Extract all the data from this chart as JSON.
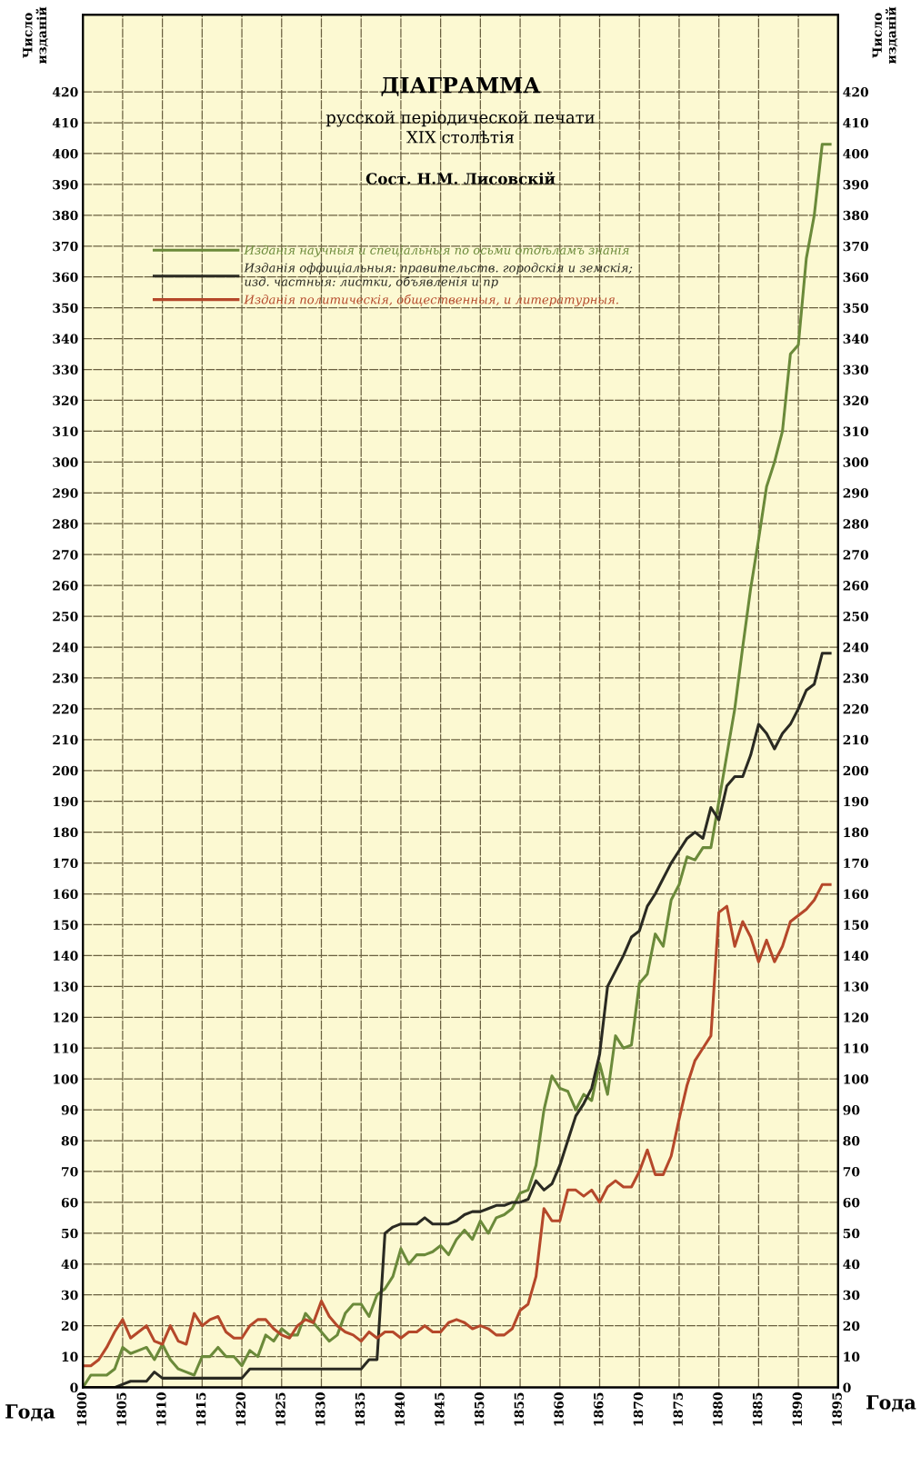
{
  "chart_data": {
    "type": "line",
    "title": "ДІАГРАММА",
    "subtitle": "русской періодической печати\nXIX столѣтія",
    "xlabel": "Года",
    "ylabel": "Число\nизданій",
    "y2label": "Число\nизданій",
    "annotations": [
      "Сост. Н.М. Лисовскій",
      "Года"
    ],
    "x": [
      1800,
      1801,
      1802,
      1803,
      1804,
      1805,
      1806,
      1807,
      1808,
      1809,
      1810,
      1811,
      1812,
      1813,
      1814,
      1815,
      1816,
      1817,
      1818,
      1819,
      1820,
      1821,
      1822,
      1823,
      1824,
      1825,
      1826,
      1827,
      1828,
      1829,
      1830,
      1831,
      1832,
      1833,
      1834,
      1835,
      1836,
      1837,
      1838,
      1839,
      1840,
      1841,
      1842,
      1843,
      1844,
      1845,
      1846,
      1847,
      1848,
      1849,
      1850,
      1851,
      1852,
      1853,
      1854,
      1855,
      1856,
      1857,
      1858,
      1859,
      1860,
      1861,
      1862,
      1863,
      1864,
      1865,
      1866,
      1867,
      1868,
      1869,
      1870,
      1871,
      1872,
      1873,
      1874,
      1875,
      1876,
      1877,
      1878,
      1879,
      1880,
      1881,
      1882,
      1883,
      1884,
      1885,
      1886,
      1887,
      1888,
      1889,
      1890,
      1891,
      1892,
      1893,
      1894
    ],
    "series": [
      {
        "name": "Изданія научныя и спеціальныя по осьми отдѣламъ знанія",
        "color": "#6b8a3a",
        "values": [
          0,
          4,
          4,
          4,
          6,
          13,
          11,
          12,
          13,
          9,
          14,
          9,
          6,
          5,
          4,
          10,
          10,
          13,
          10,
          10,
          7,
          12,
          10,
          17,
          15,
          19,
          17,
          17,
          24,
          21,
          18,
          15,
          17,
          24,
          27,
          27,
          23,
          30,
          32,
          36,
          45,
          40,
          43,
          43,
          44,
          46,
          43,
          48,
          51,
          48,
          54,
          50,
          55,
          56,
          58,
          63,
          64,
          72,
          90,
          101,
          97,
          96,
          90,
          95,
          93,
          105,
          95,
          114,
          110,
          111,
          131,
          134,
          147,
          143,
          158,
          163,
          172,
          171,
          175,
          175,
          190,
          205,
          220,
          240,
          259,
          275,
          292,
          300,
          310,
          335,
          338,
          366,
          380,
          403,
          403
        ]
      },
      {
        "name": "Изданія оффиціальныя: правительств. городскія и земскія;\nизд. частныя: листки, объявленія и пр",
        "color": "#2a2a22",
        "values": [
          0,
          0,
          0,
          0,
          0,
          1,
          2,
          2,
          2,
          5,
          3,
          3,
          3,
          3,
          3,
          3,
          3,
          3,
          3,
          3,
          3,
          6,
          6,
          6,
          6,
          6,
          6,
          6,
          6,
          6,
          6,
          6,
          6,
          6,
          6,
          6,
          9,
          9,
          50,
          52,
          53,
          53,
          53,
          55,
          53,
          53,
          53,
          54,
          56,
          57,
          57,
          58,
          59,
          59,
          60,
          60,
          61,
          67,
          64,
          66,
          72,
          80,
          88,
          92,
          97,
          108,
          130,
          135,
          140,
          146,
          148,
          156,
          160,
          165,
          170,
          174,
          178,
          180,
          178,
          188,
          184,
          195,
          198,
          198,
          205,
          215,
          212,
          207,
          212,
          215,
          220,
          226,
          228,
          238,
          238
        ]
      },
      {
        "name": "Изданія политическія, общественныя, и литературныя.",
        "color": "#b5482a",
        "values": [
          7,
          7,
          9,
          13,
          18,
          22,
          16,
          18,
          20,
          15,
          14,
          20,
          15,
          14,
          24,
          20,
          22,
          23,
          18,
          16,
          16,
          20,
          22,
          22,
          19,
          17,
          16,
          20,
          22,
          21,
          28,
          23,
          20,
          18,
          17,
          15,
          18,
          16,
          18,
          18,
          16,
          18,
          18,
          20,
          18,
          18,
          21,
          22,
          21,
          19,
          20,
          19,
          17,
          17,
          19,
          25,
          27,
          36,
          58,
          54,
          54,
          64,
          64,
          62,
          64,
          60,
          65,
          67,
          65,
          65,
          70,
          77,
          69,
          69,
          75,
          87,
          98,
          106,
          110,
          114,
          154,
          156,
          143,
          151,
          146,
          138,
          145,
          138,
          143,
          151,
          153,
          155,
          158,
          163,
          163
        ]
      }
    ],
    "xlim": [
      1800,
      1895
    ],
    "xticks": [
      1800,
      1805,
      1810,
      1815,
      1820,
      1825,
      1830,
      1835,
      1840,
      1845,
      1850,
      1855,
      1860,
      1865,
      1870,
      1875,
      1880,
      1885,
      1890,
      1895
    ],
    "ylim": [
      0,
      445
    ],
    "yticks": [
      0,
      10,
      20,
      30,
      40,
      50,
      60,
      70,
      80,
      90,
      100,
      110,
      120,
      130,
      140,
      150,
      160,
      170,
      180,
      190,
      200,
      210,
      220,
      230,
      240,
      250,
      260,
      270,
      280,
      290,
      300,
      310,
      320,
      330,
      340,
      350,
      360,
      370,
      380,
      390,
      400,
      410,
      420
    ],
    "y2lim": [
      0,
      445
    ],
    "y2ticks": [
      0,
      10,
      20,
      30,
      40,
      50,
      60,
      70,
      80,
      90,
      100,
      110,
      120,
      130,
      140,
      150,
      160,
      170,
      180,
      190,
      200,
      210,
      220,
      230,
      240,
      250,
      260,
      270,
      280,
      290,
      300,
      310,
      320,
      330,
      340,
      350,
      360,
      370,
      380,
      390,
      400,
      410,
      420
    ],
    "grid": true,
    "legend": "top left",
    "marker": "none",
    "line_style": "solid"
  }
}
